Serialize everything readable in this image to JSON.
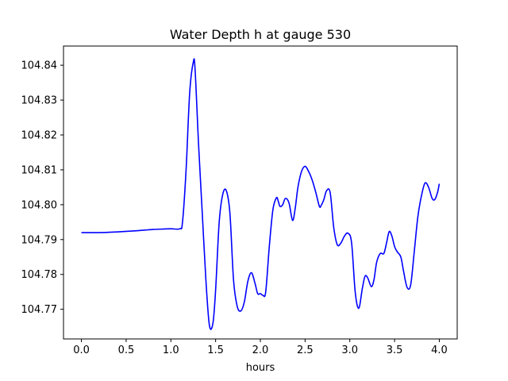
{
  "chart_data": {
    "type": "line",
    "title": "Water Depth h at gauge 530",
    "xlabel": "hours",
    "ylabel": "",
    "xlim": [
      -0.2,
      4.2
    ],
    "ylim": [
      104.7615,
      104.8455
    ],
    "x_ticks": [
      0.0,
      0.5,
      1.0,
      1.5,
      2.0,
      2.5,
      3.0,
      3.5,
      4.0
    ],
    "x_tick_labels": [
      "0.0",
      "0.5",
      "1.0",
      "1.5",
      "2.0",
      "2.5",
      "3.0",
      "3.5",
      "4.0"
    ],
    "y_ticks": [
      104.77,
      104.78,
      104.79,
      104.8,
      104.81,
      104.82,
      104.83,
      104.84
    ],
    "y_tick_labels": [
      "104.77",
      "104.78",
      "104.79",
      "104.80",
      "104.81",
      "104.82",
      "104.83",
      "104.84"
    ],
    "grid": false,
    "series": [
      {
        "color": "#0000ff",
        "x": [
          0.0,
          0.2,
          0.4,
          0.6,
          0.7,
          0.8,
          0.9,
          1.0,
          1.1,
          1.13,
          1.17,
          1.21,
          1.25,
          1.27,
          1.31,
          1.35,
          1.39,
          1.43,
          1.47,
          1.5,
          1.54,
          1.58,
          1.62,
          1.66,
          1.7,
          1.74,
          1.78,
          1.82,
          1.86,
          1.9,
          1.94,
          1.97,
          2.0,
          2.03,
          2.06,
          2.1,
          2.14,
          2.18,
          2.2,
          2.22,
          2.25,
          2.28,
          2.32,
          2.36,
          2.39,
          2.42,
          2.46,
          2.5,
          2.54,
          2.58,
          2.62,
          2.66,
          2.68,
          2.71,
          2.74,
          2.78,
          2.82,
          2.86,
          2.9,
          2.94,
          2.98,
          3.02,
          3.06,
          3.1,
          3.14,
          3.17,
          3.2,
          3.24,
          3.27,
          3.3,
          3.34,
          3.38,
          3.41,
          3.44,
          3.47,
          3.5,
          3.53,
          3.57,
          3.6,
          3.64,
          3.68,
          3.72,
          3.76,
          3.8,
          3.84,
          3.88,
          3.92,
          3.95,
          3.98,
          4.0
        ],
        "values": [
          104.792,
          104.792,
          104.7922,
          104.7925,
          104.7927,
          104.7929,
          104.793,
          104.7931,
          104.7931,
          104.795,
          104.81,
          104.832,
          104.8408,
          104.839,
          104.817,
          104.798,
          104.779,
          104.7655,
          104.766,
          104.7755,
          104.795,
          104.803,
          104.804,
          104.7975,
          104.7785,
          104.771,
          104.7695,
          104.772,
          104.778,
          104.7805,
          104.7775,
          104.7745,
          104.7745,
          104.774,
          104.775,
          104.788,
          104.7985,
          104.802,
          104.801,
          104.7995,
          104.8,
          104.8018,
          104.8005,
          104.7955,
          104.799,
          104.805,
          104.8095,
          104.811,
          104.8095,
          104.807,
          104.8035,
          104.7995,
          104.7998,
          104.8015,
          104.804,
          104.8035,
          104.7935,
          104.7885,
          104.789,
          104.791,
          104.7918,
          104.789,
          104.775,
          104.7703,
          104.776,
          104.7795,
          104.779,
          104.7765,
          104.7785,
          104.7835,
          104.786,
          104.786,
          104.789,
          104.7923,
          104.791,
          104.788,
          104.7865,
          104.785,
          104.781,
          104.7763,
          104.777,
          104.7865,
          104.7965,
          104.8025,
          104.8062,
          104.805,
          104.8018,
          104.8015,
          104.8035,
          104.806
        ]
      }
    ]
  }
}
